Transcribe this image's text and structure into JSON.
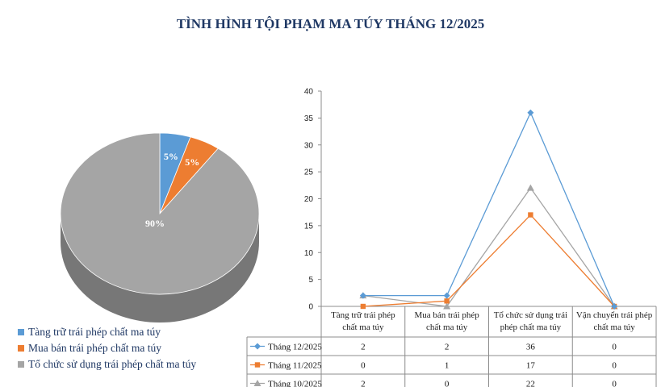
{
  "title": "TÌNH HÌNH TỘI PHẠM MA TÚY THÁNG 12/2025",
  "chart_data": [
    {
      "type": "pie",
      "labels": [
        "Tàng trữ trái phép chất ma túy",
        "Mua bán trái phép chất ma túy",
        "Tổ chức sử dụng trái phép chất ma túy"
      ],
      "values": [
        5,
        5,
        90
      ],
      "value_labels": [
        "5%",
        "5%",
        "90%"
      ],
      "colors": [
        "#5b9bd5",
        "#ed7d31",
        "#a5a5a5"
      ],
      "legend_position": "bottom-left"
    },
    {
      "type": "line",
      "categories": [
        "Tàng trữ trái phép chất ma túy",
        "Mua bán trái phép chất ma túy",
        "Tổ chức sử dụng trái phép chất ma túy",
        "Vận chuyển trái phép chất ma túy"
      ],
      "category_lines": [
        [
          "Tàng trữ trái phép",
          "chất ma túy"
        ],
        [
          "Mua bán trái phép",
          "chất ma túy"
        ],
        [
          "Tổ chức sử dụng trái",
          "phép chất ma túy"
        ],
        [
          "Vận chuyển trái phép",
          "chất ma túy"
        ]
      ],
      "series": [
        {
          "name": "Tháng 12/2025",
          "values": [
            2,
            2,
            36,
            0
          ],
          "color": "#5b9bd5",
          "marker": "diamond"
        },
        {
          "name": "Tháng 11/2025",
          "values": [
            0,
            1,
            17,
            0
          ],
          "color": "#ed7d31",
          "marker": "square"
        },
        {
          "name": "Tháng 10/2025",
          "values": [
            2,
            0,
            22,
            0
          ],
          "color": "#a5a5a5",
          "marker": "triangle"
        }
      ],
      "ylim": [
        0,
        40
      ],
      "yticks": [
        "0",
        "5",
        "10",
        "15",
        "20",
        "25",
        "30",
        "35",
        "40"
      ],
      "data_table": true,
      "grid": false
    }
  ]
}
